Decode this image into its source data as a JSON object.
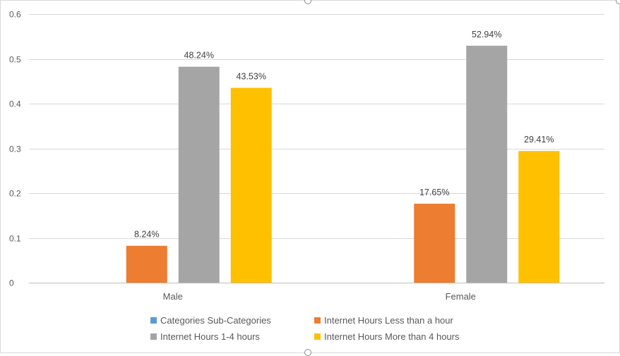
{
  "chart_data": {
    "type": "bar",
    "title": "",
    "xlabel": "",
    "ylabel": "",
    "categories": [
      "Male",
      "Female"
    ],
    "ylim": [
      0,
      0.6
    ],
    "yticks": [
      0,
      0.1,
      0.2,
      0.3,
      0.4,
      0.5,
      0.6
    ],
    "ytick_labels": [
      "0",
      "0.1",
      "0.2",
      "0.3",
      "0.4",
      "0.5",
      "0.6"
    ],
    "grid": true,
    "legend_position": "bottom",
    "series": [
      {
        "name": "Categories  Sub-Categories",
        "color": "#5B9BD5",
        "values": [
          null,
          null
        ],
        "labels": [
          "",
          ""
        ]
      },
      {
        "name": "Internet Hours  Less than a hour",
        "color": "#ED7D31",
        "values": [
          0.0824,
          0.1765
        ],
        "labels": [
          "8.24%",
          "17.65%"
        ]
      },
      {
        "name": "Internet Hours  1-4 hours",
        "color": "#A5A5A5",
        "values": [
          0.4824,
          0.5294
        ],
        "labels": [
          "48.24%",
          "52.94%"
        ]
      },
      {
        "name": "Internet Hours  More than 4 hours",
        "color": "#FFC000",
        "values": [
          0.4353,
          0.2941
        ],
        "labels": [
          "43.53%",
          "29.41%"
        ]
      }
    ]
  }
}
